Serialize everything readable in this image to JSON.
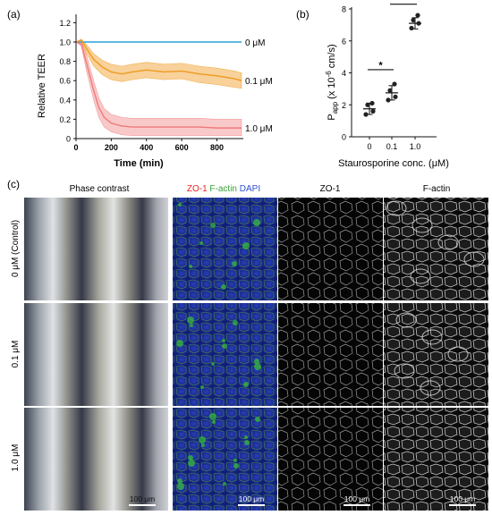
{
  "panel_labels": {
    "a": "(a)",
    "b": "(b)",
    "c": "(c)"
  },
  "colors": {
    "control": "#29a3da",
    "mid": "#ef9a1e",
    "mid_band": "#f6c27a",
    "high": "#f07a7a",
    "high_band": "#f7b7b7",
    "axis": "#111111"
  },
  "chart_data": [
    {
      "type": "line",
      "panel": "a",
      "xlabel": "Time (min)",
      "ylabel": "Relative TEER",
      "xlim": [
        0,
        950
      ],
      "ylim": [
        0,
        1.25
      ],
      "x_ticks": [
        "0",
        "200",
        "400",
        "600",
        "800"
      ],
      "y_ticks": [
        "0",
        "0.2",
        "0.4",
        "0.6",
        "0.8",
        "1.0",
        "1.2"
      ],
      "series": [
        {
          "name": "0 μM",
          "x": [
            0,
            50,
            100,
            200,
            300,
            400,
            500,
            600,
            700,
            800,
            940
          ],
          "y": [
            1.0,
            1.0,
            1.0,
            1.0,
            1.0,
            1.0,
            1.0,
            1.0,
            1.0,
            1.0,
            1.0
          ],
          "lower": [
            1.0,
            1.0,
            1.0,
            1.0,
            1.0,
            1.0,
            1.0,
            1.0,
            1.0,
            1.0,
            1.0
          ],
          "upper": [
            1.0,
            1.0,
            1.0,
            1.0,
            1.0,
            1.0,
            1.0,
            1.0,
            1.0,
            1.0,
            1.0
          ]
        },
        {
          "name": "0.1 μM",
          "x": [
            0,
            30,
            60,
            100,
            150,
            200,
            260,
            320,
            400,
            500,
            600,
            700,
            800,
            900,
            940
          ],
          "y": [
            1.0,
            1.02,
            0.93,
            0.82,
            0.74,
            0.69,
            0.67,
            0.69,
            0.71,
            0.69,
            0.7,
            0.67,
            0.65,
            0.62,
            0.6
          ],
          "lower": [
            1.0,
            1.0,
            0.88,
            0.75,
            0.66,
            0.61,
            0.59,
            0.61,
            0.63,
            0.61,
            0.62,
            0.58,
            0.56,
            0.53,
            0.52
          ],
          "upper": [
            1.0,
            1.03,
            0.97,
            0.88,
            0.81,
            0.77,
            0.75,
            0.77,
            0.79,
            0.77,
            0.78,
            0.75,
            0.73,
            0.7,
            0.68
          ]
        },
        {
          "name": "1.0 μM",
          "x": [
            0,
            30,
            60,
            100,
            130,
            160,
            200,
            260,
            320,
            400,
            500,
            600,
            700,
            800,
            940
          ],
          "y": [
            1.0,
            0.98,
            0.78,
            0.5,
            0.32,
            0.22,
            0.16,
            0.13,
            0.12,
            0.12,
            0.12,
            0.12,
            0.12,
            0.11,
            0.11
          ],
          "lower": [
            1.0,
            0.96,
            0.7,
            0.4,
            0.22,
            0.12,
            0.07,
            0.04,
            0.03,
            0.03,
            0.03,
            0.03,
            0.03,
            0.03,
            0.03
          ],
          "upper": [
            1.0,
            1.0,
            0.86,
            0.6,
            0.42,
            0.31,
            0.25,
            0.22,
            0.21,
            0.21,
            0.21,
            0.21,
            0.21,
            0.2,
            0.2
          ]
        }
      ],
      "grid": false,
      "legend": "inline labels at right end of each line"
    },
    {
      "type": "scatter",
      "panel": "b",
      "ylabel_main": "P",
      "ylabel_sub": "app",
      "ylabel_rest": " (x 10",
      "ylabel_exp": "-6",
      "ylabel_end": " cm/s)",
      "xlabel": "Staurosporine conc. (μM)",
      "categories": [
        "0",
        "0.1",
        "1.0"
      ],
      "ylim": [
        0,
        8
      ],
      "y_ticks": [
        "0",
        "2",
        "4",
        "6",
        "8"
      ],
      "points": [
        [
          1.4,
          1.6,
          2.0,
          2.1
        ],
        [
          2.3,
          2.5,
          2.9,
          3.3
        ],
        [
          6.8,
          7.1,
          7.3,
          7.6
        ]
      ],
      "means": [
        1.75,
        2.75,
        7.1
      ],
      "sd": [
        0.35,
        0.45,
        0.35
      ],
      "significance": [
        {
          "from": 0,
          "to": 1,
          "label": "*",
          "y": 4.2
        },
        {
          "from": 1,
          "to": 2,
          "label": "****",
          "y": 8.3
        },
        {
          "from": 0,
          "to": 2,
          "label": "****",
          "y": 9.05
        }
      ],
      "grid": false
    }
  ],
  "micrographs": {
    "column_headers": [
      {
        "text": "Phase contrast"
      },
      {
        "parts": [
          {
            "text": "ZO-1",
            "color": "#e52421"
          },
          {
            "text": " F-actin",
            "color": "#3aa33a"
          },
          {
            "text": " DAPI",
            "color": "#2f4fd0"
          }
        ]
      },
      {
        "text": "ZO-1"
      },
      {
        "text": "F-actin"
      }
    ],
    "row_labels": [
      "0 μM (Control)",
      "0.1 μM",
      "1.0 μM"
    ],
    "scale_bar_label": "100 μm"
  }
}
